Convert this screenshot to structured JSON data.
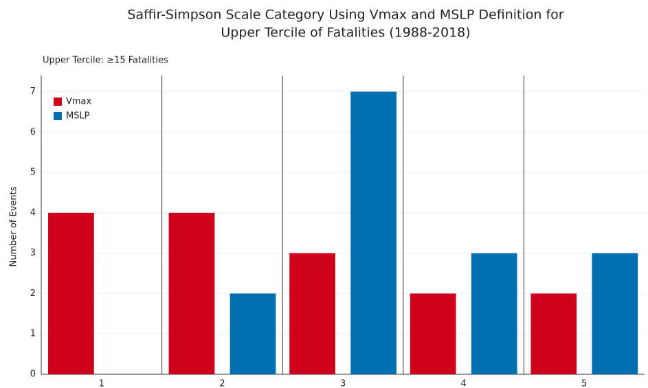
{
  "chart_data": {
    "type": "bar",
    "title": [
      "Saffir-Simpson Scale Category Using Vmax and MSLP Definition for",
      "Upper Tercile of Fatalities (1988-2018)"
    ],
    "subtitle": "Upper Tercile: ≥15 Fatalities",
    "y_label": "Number of Events",
    "categories": [
      "1",
      "2",
      "3",
      "4",
      "5"
    ],
    "series": [
      {
        "name": "Vmax",
        "color": "#d0021b",
        "values": [
          4,
          4,
          3,
          2,
          2
        ]
      },
      {
        "name": "MSLP",
        "color": "#0070b0",
        "values": [
          0,
          2,
          7,
          3,
          3
        ]
      }
    ],
    "ylim": [
      0,
      7.4
    ],
    "yticks": [
      0,
      1,
      2,
      3,
      4,
      5,
      6,
      7
    ],
    "grid": true,
    "legend": "upper left"
  }
}
